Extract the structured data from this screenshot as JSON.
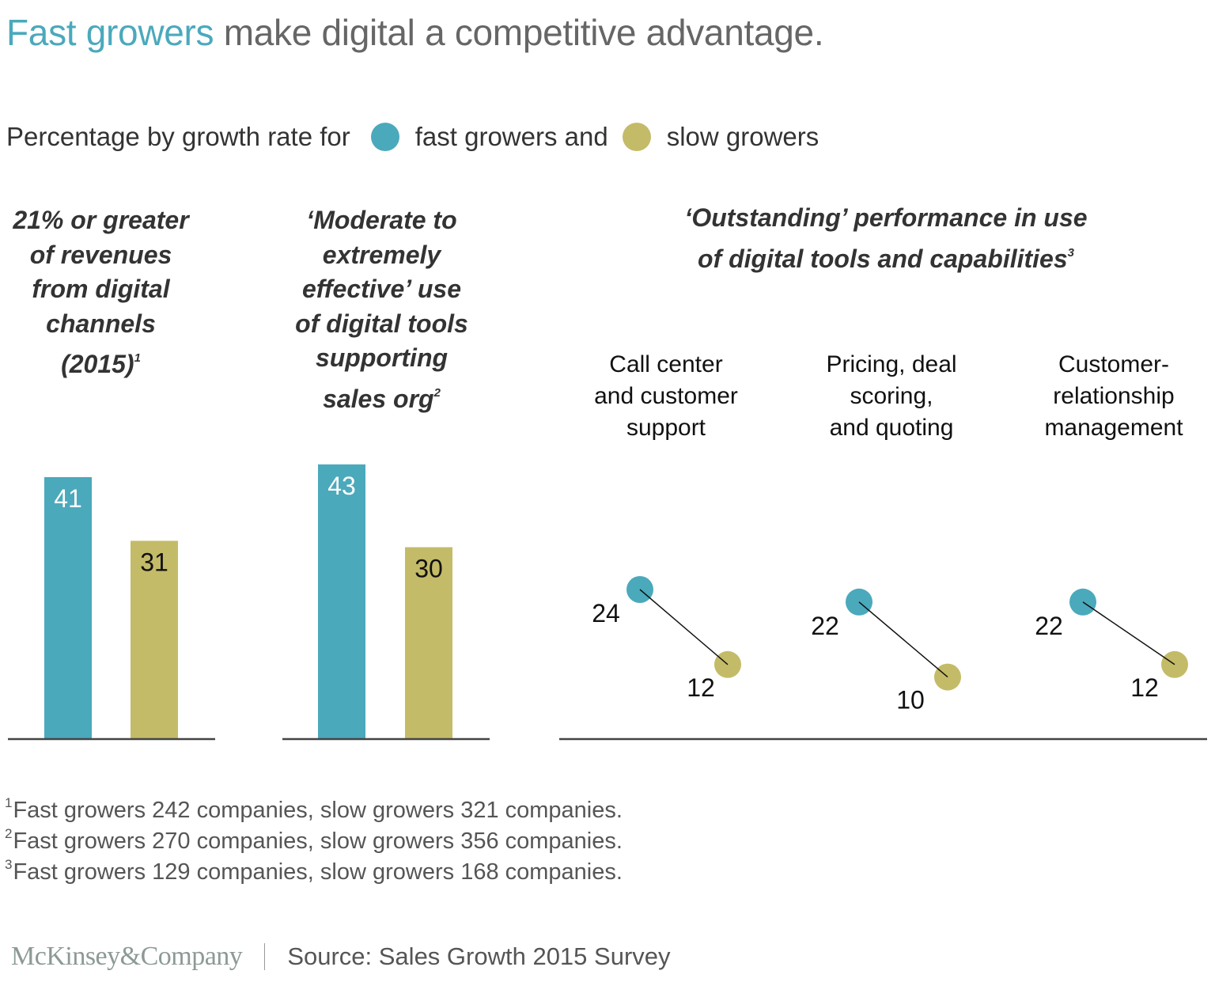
{
  "title": {
    "accent": "Fast growers",
    "rest": " make digital a competitive advantage."
  },
  "legend": {
    "prefix": "Percentage by growth rate for",
    "fast_label": "fast growers and",
    "slow_label": "slow growers"
  },
  "colors": {
    "fast": "#4BA9BC",
    "slow": "#C4BB68",
    "title_accent": "#4BA9BC",
    "axis": "#444444"
  },
  "panels": {
    "revenue": {
      "heading_lines": [
        "21% or greater",
        "of revenues",
        "from digital",
        "channels",
        "(2015)"
      ],
      "footnote_ref": "1"
    },
    "effective_use": {
      "heading_lines": [
        "‘Moderate to",
        "extremely",
        "effective’ use",
        "of digital tools",
        "supporting",
        "sales org"
      ],
      "footnote_ref": "2"
    },
    "outstanding": {
      "heading_lines": [
        "‘Outstanding’ performance in use",
        "of digital tools and capabilities"
      ],
      "footnote_ref": "3",
      "sublabels": [
        [
          "Call center",
          "and customer",
          "support"
        ],
        [
          "Pricing, deal",
          "scoring,",
          "and quoting"
        ],
        [
          "Customer-",
          "relationship",
          "management"
        ]
      ]
    }
  },
  "chart_data": [
    {
      "type": "bar",
      "title": "21% or greater of revenues from digital channels (2015)",
      "categories": [
        "fast growers",
        "slow growers"
      ],
      "values": [
        41,
        31
      ],
      "labels": [
        "41",
        "31"
      ],
      "unit": "%",
      "ylim": [
        0,
        45
      ],
      "grid": false
    },
    {
      "type": "bar",
      "title": "'Moderate to extremely effective' use of digital tools supporting sales org",
      "categories": [
        "fast growers",
        "slow growers"
      ],
      "values": [
        43,
        30
      ],
      "labels": [
        "43",
        "30"
      ],
      "unit": "%",
      "ylim": [
        0,
        45
      ],
      "grid": false
    },
    {
      "type": "scatter",
      "title": "'Outstanding' performance in use of digital tools and capabilities",
      "categories": [
        "Call center and customer support",
        "Pricing, deal scoring, and quoting",
        "Customer-relationship management"
      ],
      "series": [
        {
          "name": "fast growers",
          "values": [
            24,
            22,
            22
          ]
        },
        {
          "name": "slow growers",
          "values": [
            12,
            10,
            12
          ]
        }
      ],
      "unit": "%",
      "grid": false,
      "connector_lines": true
    }
  ],
  "footnotes": [
    {
      "ref": "1",
      "text": "Fast growers 242 companies, slow growers 321 companies."
    },
    {
      "ref": "2",
      "text": "Fast growers 270 companies, slow growers 356 companies."
    },
    {
      "ref": "3",
      "text": "Fast growers 129 companies, slow growers 168 companies."
    }
  ],
  "footer": {
    "logo": "McKinsey&Company",
    "source": "Source: Sales Growth 2015 Survey"
  }
}
